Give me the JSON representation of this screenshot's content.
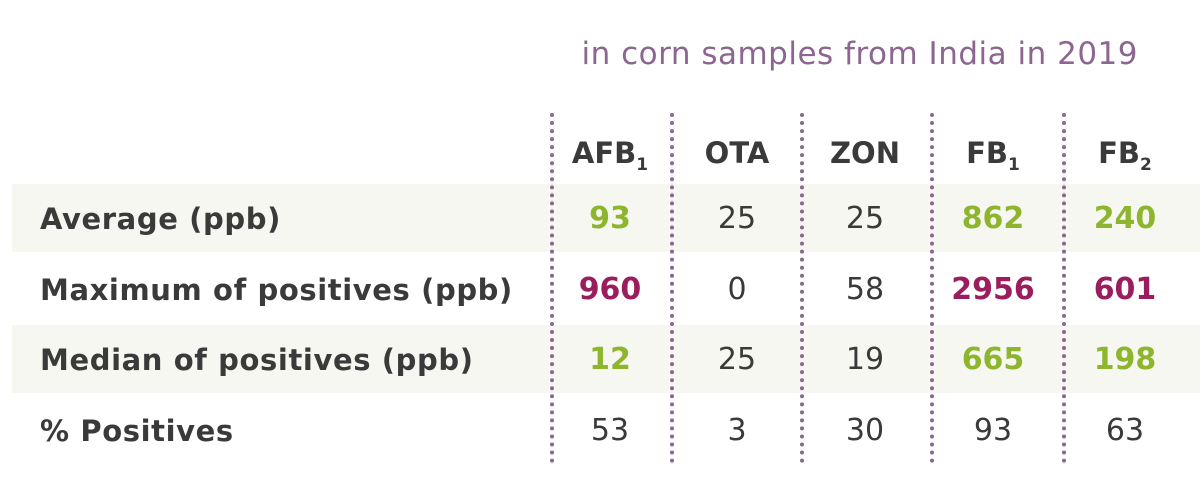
{
  "subtitle": "in corn samples from India in 2019",
  "chart_data": {
    "type": "table",
    "columns": [
      {
        "base": "AFB",
        "sub": "1"
      },
      {
        "base": "OTA",
        "sub": ""
      },
      {
        "base": "ZON",
        "sub": ""
      },
      {
        "base": "FB",
        "sub": "1"
      },
      {
        "base": "FB",
        "sub": "2"
      }
    ],
    "rows": [
      {
        "label": "Average (ppb)",
        "values": [
          "93",
          "25",
          "25",
          "862",
          "240"
        ],
        "highlight": [
          "green",
          "",
          "",
          "green",
          "green"
        ]
      },
      {
        "label": "Maximum of positives (ppb)",
        "values": [
          "960",
          "0",
          "58",
          "2956",
          "601"
        ],
        "highlight": [
          "red",
          "",
          "",
          "red",
          "red"
        ]
      },
      {
        "label": "Median of positives (ppb)",
        "values": [
          "12",
          "25",
          "19",
          "665",
          "198"
        ],
        "highlight": [
          "green",
          "",
          "",
          "green",
          "green"
        ]
      },
      {
        "label": "% Positives",
        "values": [
          "53",
          "3",
          "30",
          "93",
          "63"
        ],
        "highlight": [
          "",
          "",
          "",
          "",
          ""
        ]
      }
    ]
  },
  "colors": {
    "accent_purple": "#8c6690",
    "highlight_green": "#8db62e",
    "highlight_red": "#9a1e5e",
    "text": "#3a3a3a",
    "row_band": "#f7f7f1"
  }
}
